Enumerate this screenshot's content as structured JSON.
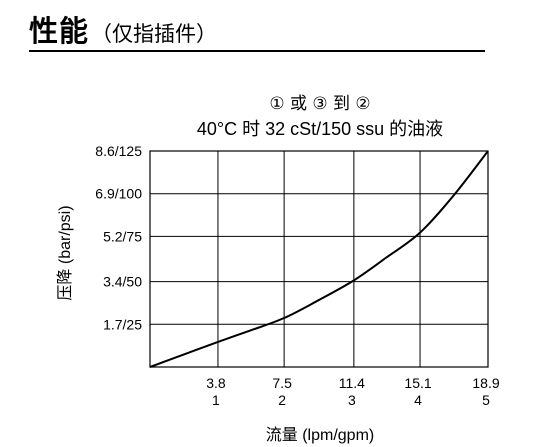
{
  "page": {
    "heading": "性能",
    "subheading": "（仅指插件）"
  },
  "chart_data": {
    "type": "line",
    "title_line1": "① 或 ③ 到 ②",
    "title_line2": "40°C 时 32 cSt/150 ssu 的油液",
    "xlabel": "流量 (lpm/gpm)",
    "ylabel": "压降 (bar/psi)",
    "xlim": [
      0,
      18.9
    ],
    "ylim": [
      0,
      8.6
    ],
    "x_ticks": [
      {
        "value": 3.8,
        "label": "3.8",
        "label2": "1"
      },
      {
        "value": 7.5,
        "label": "7.5",
        "label2": "2"
      },
      {
        "value": 11.4,
        "label": "11.4",
        "label2": "3"
      },
      {
        "value": 15.1,
        "label": "15.1",
        "label2": "4"
      },
      {
        "value": 18.9,
        "label": "18.9",
        "label2": "5"
      }
    ],
    "y_ticks": [
      {
        "value": 1.7,
        "label": "1.7/25"
      },
      {
        "value": 3.4,
        "label": "3.4/50"
      },
      {
        "value": 5.2,
        "label": "5.2/75"
      },
      {
        "value": 6.9,
        "label": "6.9/100"
      },
      {
        "value": 8.6,
        "label": "8.6/125"
      }
    ],
    "grid": true,
    "series": [
      {
        "x": [
          0,
          1.9,
          3.8,
          5.6,
          7.5,
          9.4,
          11.4,
          13.2,
          15.1,
          17.0,
          18.9
        ],
        "y": [
          0,
          0.5,
          1.0,
          1.45,
          1.95,
          2.65,
          3.45,
          4.35,
          5.35,
          6.85,
          8.6
        ]
      }
    ]
  }
}
